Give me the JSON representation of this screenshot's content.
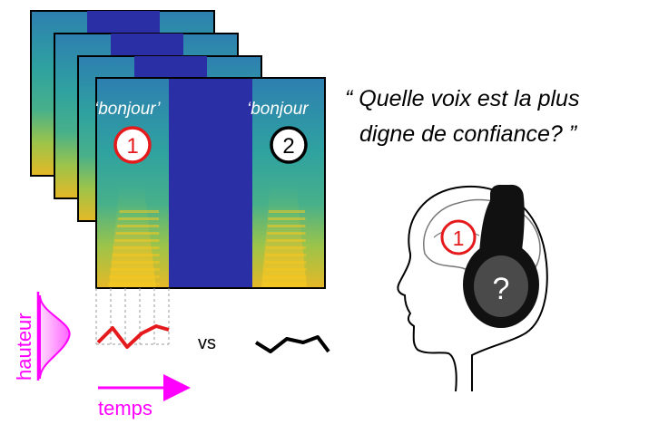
{
  "quote": {
    "line1": "“ Quelle voix est la plus",
    "line2": "digne de confiance? ”"
  },
  "stimulus_words": {
    "first": "‘bonjour’",
    "second": "‘bonjour"
  },
  "markers": {
    "first": "1",
    "second": "2",
    "listener_choice": "1",
    "unknown": "?"
  },
  "axes": {
    "pitch_label": "hauteur",
    "time_label": "temps"
  },
  "comparison_label": "vs",
  "colors": {
    "accent_red": "#e41a1c",
    "magenta": "#ff00ff",
    "spectrogram_silence": "#2b2fa6",
    "headphone": "#111111"
  }
}
